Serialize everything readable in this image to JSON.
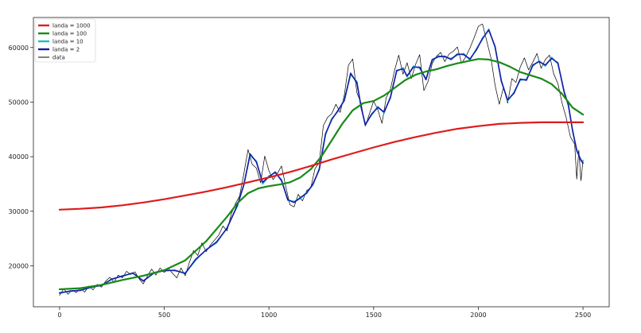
{
  "chart_data": {
    "type": "line",
    "title": "",
    "xlabel": "",
    "ylabel": "",
    "xlim": [
      -125,
      2625
    ],
    "ylim": [
      12500,
      65500
    ],
    "x_ticks": [
      0,
      500,
      1000,
      1500,
      2000,
      2500
    ],
    "y_ticks": [
      20000,
      30000,
      40000,
      50000,
      60000
    ],
    "grid": false,
    "legend_position": "top-left",
    "series": [
      {
        "name": "landa = 1000",
        "color": "#dd1c1c",
        "x": [
          0,
          100,
          200,
          300,
          400,
          500,
          600,
          700,
          800,
          900,
          1000,
          1100,
          1200,
          1300,
          1400,
          1500,
          1600,
          1700,
          1800,
          1900,
          2000,
          2100,
          2200,
          2300,
          2400,
          2500
        ],
        "y": [
          30300,
          30450,
          30700,
          31100,
          31600,
          32200,
          32900,
          33600,
          34400,
          35300,
          36200,
          37200,
          38300,
          39500,
          40600,
          41700,
          42700,
          43600,
          44400,
          45100,
          45600,
          46000,
          46200,
          46300,
          46300,
          46300
        ]
      },
      {
        "name": "landa = 100",
        "color": "#188a18",
        "x": [
          0,
          100,
          200,
          300,
          400,
          500,
          600,
          700,
          800,
          850,
          900,
          950,
          1000,
          1050,
          1100,
          1150,
          1200,
          1250,
          1300,
          1350,
          1400,
          1450,
          1500,
          1550,
          1600,
          1650,
          1700,
          1750,
          1800,
          1850,
          1900,
          1950,
          2000,
          2050,
          2100,
          2150,
          2200,
          2250,
          2300,
          2350,
          2400,
          2450,
          2500
        ],
        "y": [
          15700,
          15900,
          16500,
          17400,
          18200,
          19200,
          21000,
          24500,
          29000,
          31500,
          33300,
          34200,
          34600,
          34900,
          35300,
          36200,
          37700,
          40000,
          43000,
          46000,
          48500,
          49800,
          50200,
          51200,
          52600,
          54000,
          55000,
          55600,
          56000,
          56600,
          57100,
          57500,
          57900,
          57800,
          57300,
          56500,
          55500,
          54900,
          54300,
          53300,
          51500,
          49000,
          47700
        ]
      },
      {
        "name": "landa = 10",
        "color": "#17becf",
        "x": [
          0,
          50,
          100,
          150,
          200,
          250,
          300,
          350,
          400,
          450,
          500,
          550,
          600,
          650,
          700,
          750,
          800,
          850,
          880,
          910,
          940,
          970,
          1000,
          1030,
          1060,
          1090,
          1120,
          1150,
          1180,
          1210,
          1240,
          1270,
          1300,
          1330,
          1360,
          1390,
          1420,
          1440,
          1460,
          1490,
          1520,
          1550,
          1580,
          1610,
          1640,
          1660,
          1690,
          1720,
          1750,
          1780,
          1810,
          1840,
          1870,
          1900,
          1930,
          1960,
          1990,
          2020,
          2050,
          2080,
          2110,
          2140,
          2170,
          2200,
          2230,
          2260,
          2290,
          2320,
          2350,
          2380,
          2410,
          2430,
          2450,
          2470,
          2490,
          2500
        ],
        "y": [
          15100,
          15300,
          15600,
          16000,
          16500,
          17500,
          18200,
          18600,
          17300,
          18600,
          19200,
          19100,
          18700,
          21000,
          23000,
          24200,
          27000,
          31000,
          35000,
          40200,
          39200,
          35000,
          36500,
          37000,
          35800,
          32000,
          31800,
          32300,
          33500,
          34800,
          37800,
          44000,
          47000,
          48300,
          50500,
          55000,
          53800,
          49000,
          46000,
          47600,
          49200,
          48000,
          51000,
          55600,
          56300,
          54600,
          56600,
          56200,
          54300,
          57600,
          58500,
          58200,
          58000,
          58600,
          58900,
          57700,
          59700,
          61500,
          63400,
          60000,
          54000,
          50200,
          51800,
          54000,
          54200,
          56600,
          57600,
          56600,
          58200,
          57000,
          52000,
          49300,
          45000,
          41000,
          39500,
          39000
        ]
      },
      {
        "name": "landa = 2",
        "color": "#1a1aa8",
        "x": [
          0,
          50,
          100,
          150,
          200,
          250,
          300,
          350,
          400,
          450,
          500,
          550,
          600,
          650,
          700,
          750,
          800,
          850,
          880,
          910,
          940,
          970,
          1000,
          1030,
          1060,
          1090,
          1120,
          1150,
          1180,
          1210,
          1240,
          1270,
          1300,
          1330,
          1360,
          1390,
          1420,
          1440,
          1460,
          1490,
          1520,
          1550,
          1580,
          1610,
          1640,
          1660,
          1690,
          1720,
          1750,
          1780,
          1810,
          1840,
          1870,
          1900,
          1930,
          1960,
          1990,
          2020,
          2050,
          2080,
          2110,
          2140,
          2170,
          2200,
          2230,
          2260,
          2290,
          2320,
          2350,
          2380,
          2410,
          2430,
          2450,
          2470,
          2490,
          2500
        ],
        "y": [
          15000,
          15400,
          15500,
          16100,
          16400,
          17600,
          18100,
          18700,
          17200,
          18700,
          19100,
          19200,
          18600,
          21200,
          22900,
          24400,
          26900,
          31200,
          34800,
          40500,
          39000,
          35300,
          36300,
          37200,
          35600,
          32100,
          31600,
          32500,
          33300,
          35000,
          37600,
          44200,
          46800,
          48500,
          50300,
          55300,
          53500,
          49200,
          45800,
          47800,
          49000,
          48200,
          50800,
          55800,
          56100,
          54800,
          56400,
          56400,
          54100,
          57800,
          58300,
          58400,
          57800,
          58800,
          58700,
          57900,
          59500,
          61700,
          63200,
          60200,
          53800,
          50400,
          51600,
          54200,
          54000,
          56800,
          57400,
          56800,
          58000,
          57200,
          51800,
          49500,
          44800,
          41200,
          39300,
          38800
        ]
      },
      {
        "name": "data",
        "color": "#000000",
        "x": [
          0,
          20,
          40,
          60,
          80,
          100,
          120,
          140,
          160,
          180,
          200,
          220,
          240,
          260,
          280,
          300,
          320,
          340,
          360,
          380,
          400,
          420,
          440,
          460,
          480,
          500,
          520,
          540,
          560,
          580,
          600,
          620,
          640,
          660,
          680,
          700,
          720,
          740,
          760,
          780,
          800,
          820,
          840,
          860,
          880,
          900,
          920,
          940,
          960,
          980,
          1000,
          1020,
          1040,
          1060,
          1080,
          1100,
          1120,
          1140,
          1160,
          1180,
          1200,
          1220,
          1240,
          1260,
          1280,
          1300,
          1320,
          1340,
          1360,
          1380,
          1400,
          1420,
          1440,
          1460,
          1480,
          1500,
          1520,
          1540,
          1560,
          1580,
          1600,
          1620,
          1640,
          1660,
          1680,
          1700,
          1720,
          1740,
          1760,
          1780,
          1800,
          1820,
          1840,
          1860,
          1880,
          1900,
          1920,
          1940,
          1960,
          1980,
          2000,
          2020,
          2040,
          2060,
          2080,
          2100,
          2120,
          2140,
          2160,
          2180,
          2200,
          2220,
          2240,
          2260,
          2280,
          2300,
          2320,
          2340,
          2360,
          2380,
          2400,
          2420,
          2440,
          2460,
          2470,
          2480,
          2490,
          2500
        ],
        "y": [
          14600,
          15800,
          14800,
          15500,
          15100,
          15900,
          15200,
          16300,
          15600,
          16600,
          16100,
          17200,
          17900,
          17000,
          18300,
          17800,
          19000,
          18400,
          18900,
          17600,
          16700,
          18200,
          19400,
          18300,
          19600,
          18800,
          19500,
          18600,
          17800,
          19600,
          18200,
          20600,
          22800,
          21900,
          24200,
          22600,
          23800,
          24700,
          25600,
          27300,
          26400,
          29500,
          31400,
          32800,
          36900,
          41300,
          38600,
          37900,
          35200,
          40100,
          37400,
          35800,
          36900,
          38300,
          34600,
          31200,
          30800,
          33100,
          31900,
          33800,
          34300,
          37800,
          38900,
          45700,
          47200,
          47900,
          49600,
          48100,
          51300,
          56800,
          57900,
          51700,
          49800,
          45600,
          47900,
          50200,
          48600,
          46100,
          50800,
          52300,
          55800,
          58600,
          55100,
          57200,
          54300,
          56900,
          58700,
          52100,
          53800,
          57100,
          58400,
          59100,
          57400,
          58800,
          59300,
          60100,
          57100,
          58300,
          59900,
          61800,
          63900,
          64300,
          61200,
          58100,
          53100,
          49600,
          52700,
          49800,
          54300,
          53600,
          56400,
          58100,
          55900,
          57300,
          58900,
          56200,
          57800,
          58600,
          55200,
          53400,
          49800,
          47100,
          43600,
          42300,
          35900,
          41200,
          35600,
          39400
        ]
      }
    ]
  }
}
